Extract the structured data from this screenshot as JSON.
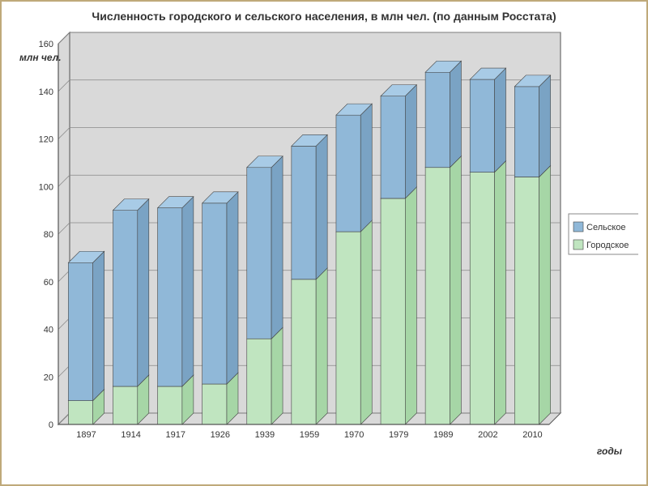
{
  "chart": {
    "type": "stacked-bar-3d",
    "title": "Численность городского и сельского населения, в млн чел. (по данным Росстата)",
    "ylabel": "млн чел.",
    "xlabel": "годы",
    "title_fontsize": 14,
    "label_fontsize": 12,
    "categories": [
      "1897",
      "1914",
      "1917",
      "1926",
      "1939",
      "1959",
      "1970",
      "1979",
      "1989",
      "2002",
      "2010"
    ],
    "series": [
      {
        "name": "Городское",
        "color_front": "#c0e5c0",
        "color_top": "#d4f0d4",
        "color_side": "#a6d6a6",
        "values": [
          10,
          16,
          16,
          17,
          36,
          61,
          81,
          95,
          108,
          106,
          104
        ]
      },
      {
        "name": "Сельское",
        "color_front": "#90b8d8",
        "color_top": "#a8cbe6",
        "color_side": "#7aa3c4",
        "values": [
          58,
          74,
          75,
          76,
          72,
          56,
          49,
          43,
          40,
          39,
          38
        ]
      }
    ],
    "legend": {
      "labels": [
        "Сельское",
        "Городское"
      ],
      "colors": [
        "#90b8d8",
        "#c0e5c0"
      ],
      "border": "#888888",
      "bg": "#ffffff"
    },
    "ylim": [
      0,
      160
    ],
    "ytick_step": 20,
    "plot_bg": "#d9d9d9",
    "back_wall": "#d9d9d9",
    "grid_color": "#888888",
    "axis_color": "#555555",
    "tick_font": 11,
    "bar_width": 0.55,
    "depth": 14
  }
}
